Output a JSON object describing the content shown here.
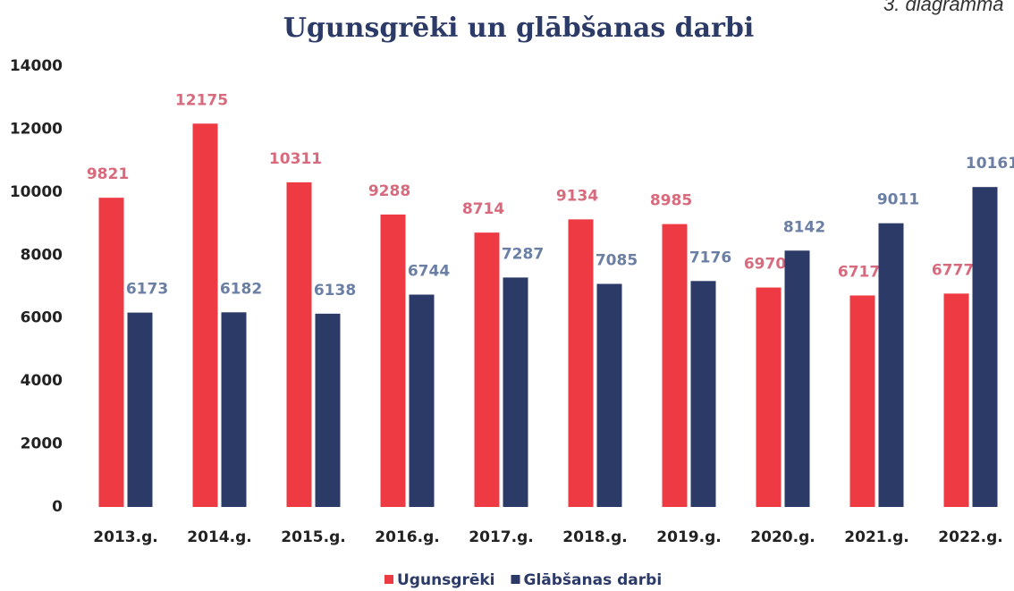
{
  "chart_data": {
    "type": "bar",
    "title": "Ugunsgrēki un glābšanas darbi",
    "corner_note": "3. diagramma",
    "categories": [
      "2013.g.",
      "2014.g.",
      "2015.g.",
      "2016.g.",
      "2017.g.",
      "2018.g.",
      "2019.g.",
      "2020.g.",
      "2021.g.",
      "2022.g."
    ],
    "series": [
      {
        "name": "Ugunsgrēki",
        "color": "#ee3b43",
        "label_color": "#d76a7c",
        "values": [
          9821,
          12175,
          10311,
          9288,
          8714,
          9134,
          8985,
          6970,
          6717,
          6777
        ]
      },
      {
        "name": "Glābšanas darbi",
        "color": "#2b3a67",
        "label_color": "#6a7fa3",
        "values": [
          6173,
          6182,
          6138,
          6744,
          7287,
          7085,
          7176,
          8142,
          9011,
          10161
        ]
      }
    ],
    "ylim": [
      0,
      14000
    ],
    "yticks": [
      0,
      2000,
      4000,
      6000,
      8000,
      10000,
      12000,
      14000
    ],
    "legend": "bottom"
  }
}
